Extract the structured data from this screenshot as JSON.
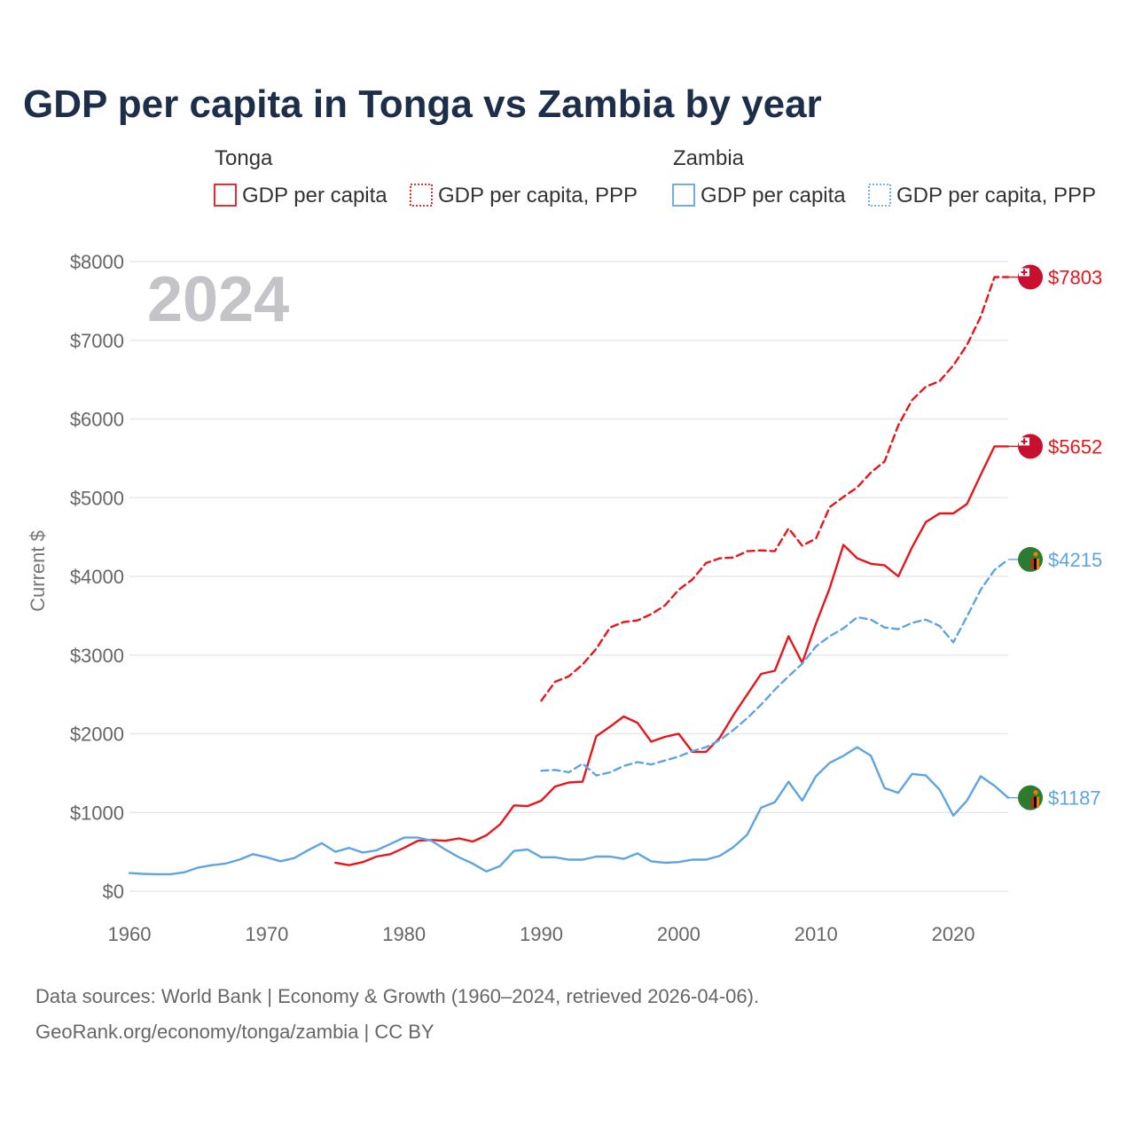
{
  "chart_data": {
    "type": "line",
    "title": "GDP per capita in Tonga vs Zambia by year",
    "ylabel": "Current $",
    "xlabel": "",
    "xlim": [
      1960,
      2024
    ],
    "ylim": [
      0,
      8000
    ],
    "x_ticks": [
      1960,
      1970,
      1980,
      1990,
      2000,
      2010,
      2020
    ],
    "x_tick_labels": [
      "1960",
      "1970",
      "1980",
      "1990",
      "2000",
      "2010",
      "2020"
    ],
    "y_ticks": [
      0,
      1000,
      2000,
      3000,
      4000,
      5000,
      6000,
      7000,
      8000
    ],
    "y_tick_labels": [
      "$0",
      "$1000",
      "$2000",
      "$3000",
      "$4000",
      "$5000",
      "$6000",
      "$7000",
      "$8000"
    ],
    "current_year": "2024",
    "legend": {
      "groups": [
        {
          "country": "Tonga",
          "items": [
            "GDP per capita",
            "GDP per capita, PPP"
          ]
        },
        {
          "country": "Zambia",
          "items": [
            "GDP per capita",
            "GDP per capita, PPP"
          ]
        }
      ]
    },
    "series": [
      {
        "name": "Tonga GDP per capita",
        "country": "Tonga",
        "color": "#e8161b",
        "dash": "solid",
        "end_label": "$5652",
        "flag": "tonga",
        "start_year": 1975,
        "values": [
          360,
          330,
          370,
          440,
          470,
          550,
          640,
          650,
          640,
          670,
          630,
          710,
          850,
          1090,
          1080,
          1150,
          1330,
          1380,
          1390,
          1970,
          2090,
          2220,
          2140,
          1900,
          1960,
          2000,
          1770,
          1770,
          1950,
          2240,
          2500,
          2760,
          2800,
          3240,
          2900,
          3400,
          3850,
          4400,
          4230,
          4160,
          4140,
          4000,
          4370,
          4690,
          4800,
          4800,
          4920,
          5290,
          5652,
          5652
        ]
      },
      {
        "name": "Tonga GDP per capita, PPP",
        "country": "Tonga",
        "color": "#e8161b",
        "dash": "dashed",
        "end_label": "$7803",
        "flag": "tonga",
        "start_year": 1990,
        "values": [
          2420,
          2660,
          2730,
          2880,
          3080,
          3350,
          3420,
          3440,
          3520,
          3630,
          3830,
          3960,
          4170,
          4230,
          4240,
          4320,
          4330,
          4320,
          4610,
          4390,
          4480,
          4880,
          5010,
          5130,
          5320,
          5460,
          5920,
          6240,
          6410,
          6480,
          6680,
          6940,
          7300,
          7803,
          7803
        ]
      },
      {
        "name": "Zambia GDP per capita",
        "country": "Zambia",
        "color": "#5ea4e3",
        "dash": "solid",
        "end_label": "$1187",
        "flag": "zambia",
        "start_year": 1960,
        "values": [
          230,
          220,
          215,
          215,
          240,
          300,
          330,
          350,
          400,
          470,
          430,
          380,
          420,
          520,
          610,
          500,
          550,
          490,
          520,
          600,
          680,
          680,
          640,
          530,
          430,
          350,
          250,
          320,
          510,
          530,
          430,
          430,
          400,
          400,
          440,
          440,
          410,
          480,
          380,
          360,
          370,
          400,
          400,
          450,
          560,
          720,
          1060,
          1130,
          1390,
          1150,
          1460,
          1630,
          1720,
          1830,
          1720,
          1310,
          1250,
          1490,
          1470,
          1290,
          960,
          1150,
          1460,
          1340,
          1187
        ]
      },
      {
        "name": "Zambia GDP per capita, PPP",
        "country": "Zambia",
        "color": "#5ea4e3",
        "dash": "dashed",
        "end_label": "$4215",
        "flag": "zambia",
        "start_year": 1990,
        "values": [
          1530,
          1540,
          1510,
          1620,
          1470,
          1510,
          1590,
          1640,
          1610,
          1660,
          1710,
          1780,
          1830,
          1920,
          2050,
          2200,
          2370,
          2560,
          2730,
          2890,
          3110,
          3240,
          3340,
          3480,
          3450,
          3350,
          3330,
          3410,
          3450,
          3370,
          3160,
          3490,
          3830,
          4080,
          4215
        ]
      }
    ],
    "sources": "Data sources: World Bank | Economy & Growth (1960–2024, retrieved 2026-04-06).",
    "credit": "GeoRank.org/economy/tonga/zambia | CC BY"
  }
}
